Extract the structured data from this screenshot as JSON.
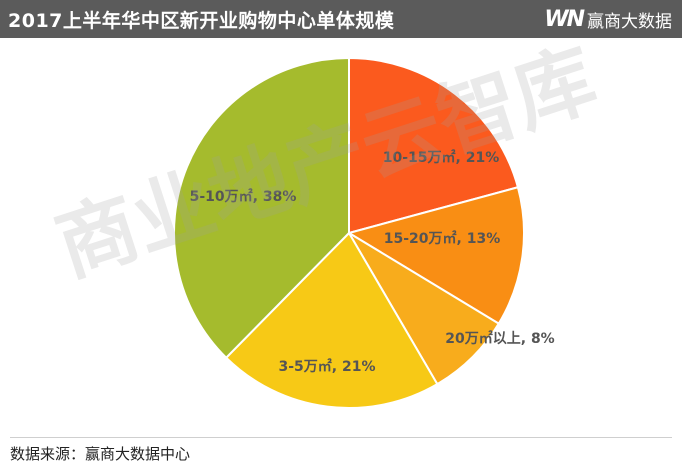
{
  "header": {
    "title": "2017上半年华中区新开业购物中心单体规模",
    "logo_mark": "WN",
    "logo_text": "赢商大数据"
  },
  "watermark": "商业地产云智库",
  "footer": {
    "source": "数据来源：赢商大数据中心"
  },
  "colors": {
    "header_bg": "#5b5b5b",
    "label": "#555555"
  },
  "chart_data": {
    "type": "pie",
    "start_angle_deg": 0,
    "direction": "clockwise",
    "slices": [
      {
        "label": "10-15万㎡, 21%",
        "value": 21,
        "color": "#fb5a1e"
      },
      {
        "label": "15-20万㎡, 13%",
        "value": 13,
        "color": "#f98e14"
      },
      {
        "label": "20万㎡以上, 8%",
        "value": 8,
        "color": "#f8ac1c"
      },
      {
        "label": "3-5万㎡, 21%",
        "value": 21,
        "color": "#f7c916"
      },
      {
        "label": "5-10万㎡, 38%",
        "value": 38,
        "color": "#a5bb2d"
      }
    ]
  }
}
